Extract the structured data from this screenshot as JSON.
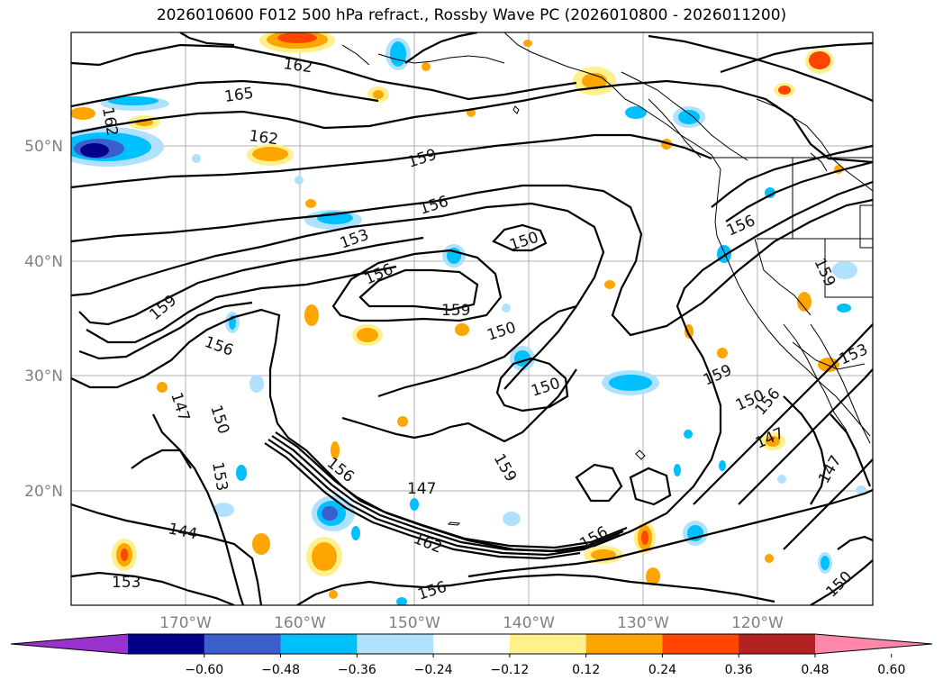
{
  "title": "2026010600 F012 500 hPa refract., Rossby Wave PC (2026010800 - 2026011200)",
  "map": {
    "lon_labels": [
      "170°W",
      "160°W",
      "150°W",
      "140°W",
      "130°W",
      "120°W"
    ],
    "lat_labels": [
      "50°N",
      "40°N",
      "30°N",
      "20°N"
    ],
    "contour_labels": [
      "162",
      "165",
      "162",
      "162",
      "159",
      "156",
      "153",
      "150",
      "156",
      "159",
      "159",
      "156",
      "150",
      "150",
      "147",
      "150",
      "153",
      "156",
      "147",
      "159",
      "162",
      "144",
      "153",
      "156",
      "156",
      "159",
      "159",
      "156",
      "150",
      "147",
      "153",
      "147",
      "150",
      "156"
    ]
  },
  "colorbar": {
    "colors": [
      "#9932cc",
      "#00008b",
      "#3a5fcd",
      "#00bfff",
      "#b0e2ff",
      "#ffffff",
      "#fff08c",
      "#ffa500",
      "#ff4500",
      "#b22222",
      "#ff88aa"
    ],
    "tick_labels": [
      "−0.60",
      "−0.48",
      "−0.36",
      "−0.24",
      "−0.12",
      "0.12",
      "0.24",
      "0.36",
      "0.48",
      "0.60"
    ]
  }
}
